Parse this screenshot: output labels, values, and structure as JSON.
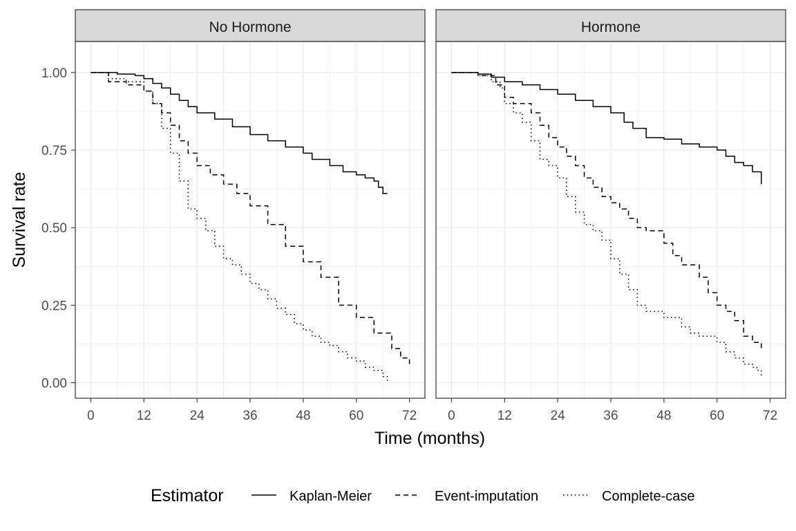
{
  "chart_data": {
    "type": "line",
    "xlabel": "Time (months)",
    "ylabel": "Survival rate",
    "xlim": [
      -3.5,
      75.5
    ],
    "ylim": [
      -0.05,
      1.1
    ],
    "x_ticks": [
      0,
      12,
      24,
      36,
      48,
      60,
      72
    ],
    "y_ticks": [
      0,
      0.25,
      0.5,
      0.75,
      1
    ],
    "y_tick_labels": [
      "0.00",
      "0.25",
      "0.50",
      "0.75",
      "1.00"
    ],
    "grid": true,
    "colors": {
      "line": "#000000",
      "strip_fill": "#d9d9d9",
      "grid": "#ebebeb",
      "border": "#333333"
    },
    "legend": {
      "title": "Estimator",
      "position": "bottom",
      "entries": [
        {
          "label": "Kaplan-Meier",
          "linetype": "solid"
        },
        {
          "label": "Event-imputation",
          "linetype": "dashed"
        },
        {
          "label": "Complete-case",
          "linetype": "dotted"
        }
      ]
    },
    "panels": [
      {
        "strip": "No Hormone",
        "series": [
          {
            "name": "Kaplan-Meier",
            "linetype": "solid",
            "x": [
              0,
              6,
              10,
              12,
              14,
              16,
              18,
              20,
              22,
              24,
              28,
              32,
              36,
              40,
              44,
              48,
              50,
              54,
              57,
              60,
              62,
              64,
              65,
              66,
              67
            ],
            "y": [
              1.0,
              0.995,
              0.99,
              0.98,
              0.965,
              0.95,
              0.93,
              0.91,
              0.89,
              0.87,
              0.85,
              0.825,
              0.8,
              0.78,
              0.76,
              0.74,
              0.72,
              0.7,
              0.68,
              0.67,
              0.66,
              0.65,
              0.63,
              0.61,
              0.61
            ]
          },
          {
            "name": "Event-imputation",
            "linetype": "dashed",
            "x": [
              0,
              4,
              8,
              12,
              14,
              16,
              18,
              20,
              22,
              24,
              27,
              30,
              33,
              36,
              40,
              44,
              48,
              52,
              56,
              60,
              64,
              68,
              70,
              72
            ],
            "y": [
              1.0,
              0.97,
              0.96,
              0.94,
              0.9,
              0.87,
              0.83,
              0.78,
              0.74,
              0.7,
              0.67,
              0.64,
              0.61,
              0.57,
              0.51,
              0.44,
              0.39,
              0.34,
              0.25,
              0.21,
              0.16,
              0.11,
              0.08,
              0.06
            ]
          },
          {
            "name": "Complete-case",
            "linetype": "dotted",
            "x": [
              0,
              4,
              8,
              12,
              14,
              16,
              18,
              20,
              22,
              24,
              26,
              28,
              30,
              32,
              34,
              36,
              38,
              40,
              42,
              44,
              46,
              48,
              50,
              52,
              54,
              56,
              58,
              60,
              62,
              64,
              66,
              67
            ],
            "y": [
              1.0,
              0.98,
              0.97,
              0.94,
              0.9,
              0.82,
              0.74,
              0.65,
              0.56,
              0.53,
              0.49,
              0.44,
              0.4,
              0.38,
              0.35,
              0.32,
              0.3,
              0.27,
              0.24,
              0.22,
              0.19,
              0.17,
              0.15,
              0.13,
              0.12,
              0.1,
              0.08,
              0.07,
              0.05,
              0.04,
              0.02,
              0.005
            ]
          }
        ]
      },
      {
        "strip": "Hormone",
        "series": [
          {
            "name": "Kaplan-Meier",
            "linetype": "solid",
            "x": [
              0,
              6,
              9,
              12,
              16,
              20,
              24,
              28,
              32,
              36,
              39,
              41,
              44,
              48,
              52,
              56,
              60,
              62,
              64,
              66,
              68,
              69,
              70
            ],
            "y": [
              1.0,
              0.995,
              0.985,
              0.97,
              0.96,
              0.945,
              0.93,
              0.91,
              0.89,
              0.87,
              0.84,
              0.82,
              0.79,
              0.785,
              0.77,
              0.76,
              0.75,
              0.73,
              0.71,
              0.7,
              0.68,
              0.68,
              0.64
            ]
          },
          {
            "name": "Event-imputation",
            "linetype": "dashed",
            "x": [
              0,
              6,
              10,
              12,
              14,
              18,
              20,
              22,
              24,
              26,
              28,
              30,
              32,
              34,
              36,
              38,
              40,
              42,
              44,
              48,
              50,
              52,
              56,
              58,
              60,
              62,
              64,
              66,
              68,
              70
            ],
            "y": [
              1.0,
              0.99,
              0.96,
              0.92,
              0.9,
              0.87,
              0.83,
              0.79,
              0.76,
              0.73,
              0.7,
              0.66,
              0.63,
              0.6,
              0.58,
              0.56,
              0.53,
              0.5,
              0.49,
              0.45,
              0.41,
              0.38,
              0.34,
              0.29,
              0.25,
              0.23,
              0.2,
              0.15,
              0.13,
              0.11
            ]
          },
          {
            "name": "Complete-case",
            "linetype": "dotted",
            "x": [
              0,
              6,
              9,
              11,
              12,
              14,
              16,
              18,
              20,
              22,
              24,
              26,
              28,
              30,
              32,
              34,
              36,
              38,
              40,
              42,
              44,
              48,
              52,
              54,
              56,
              60,
              62,
              64,
              66,
              68,
              69,
              70
            ],
            "y": [
              1.0,
              0.99,
              0.97,
              0.95,
              0.9,
              0.87,
              0.84,
              0.78,
              0.72,
              0.7,
              0.66,
              0.6,
              0.55,
              0.51,
              0.49,
              0.46,
              0.4,
              0.35,
              0.3,
              0.25,
              0.23,
              0.21,
              0.18,
              0.16,
              0.15,
              0.13,
              0.1,
              0.08,
              0.06,
              0.05,
              0.04,
              0.02
            ]
          }
        ]
      }
    ]
  }
}
